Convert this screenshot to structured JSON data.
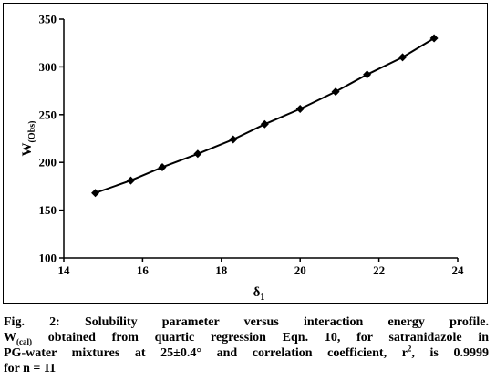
{
  "chart_data": {
    "type": "line",
    "xlabel_main": "δ",
    "xlabel_sub": "1",
    "ylabel_main": "W",
    "ylabel_sub": "(Obs)",
    "xlim": [
      14,
      24
    ],
    "ylim": [
      100,
      350
    ],
    "x_ticks": [
      14,
      16,
      18,
      20,
      22,
      24
    ],
    "y_ticks": [
      100,
      150,
      200,
      250,
      300,
      350
    ],
    "x": [
      14.8,
      15.7,
      16.5,
      17.4,
      18.3,
      19.1,
      20.0,
      20.9,
      21.7,
      22.6,
      23.4
    ],
    "y": [
      168,
      181,
      195,
      209,
      224,
      240,
      256,
      274,
      292,
      310,
      330
    ],
    "marker": "diamond",
    "line_color": "#000000",
    "grid": false
  },
  "caption": {
    "line1": "Fig. 2: Solubility parameter versus interaction energy profile.",
    "line2_pre": "W",
    "line2_sub": "(cal)",
    "line2_post": " obtained from quartic regression Eqn. 10, for satranidazole in",
    "line3_pre": "PG-water mixtures at 25±0.4° and correlation coefficient, r",
    "line3_sup": "2",
    "line3_post": ", is 0.9999",
    "line4": "for n = 11"
  }
}
